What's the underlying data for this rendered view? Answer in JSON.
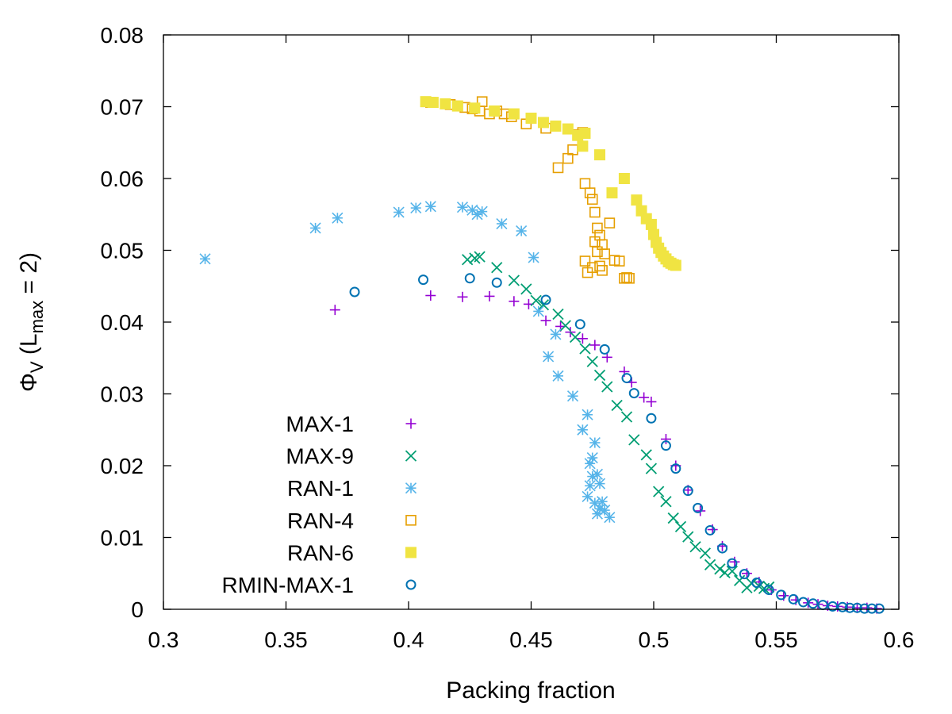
{
  "chart_data": {
    "type": "scatter",
    "title": "",
    "xlabel": "Packing fraction",
    "ylabel": {
      "base": "Φ",
      "base_sub": "V",
      "paren_open": " (L",
      "paren_sub": "max",
      "paren_close": " = 2)"
    },
    "xlim": [
      0.3,
      0.6
    ],
    "ylim": [
      0,
      0.08
    ],
    "xticks": [
      0.3,
      0.35,
      0.4,
      0.45,
      0.5,
      0.55,
      0.6
    ],
    "yticks": [
      0,
      0.01,
      0.02,
      0.03,
      0.04,
      0.05,
      0.06,
      0.07,
      0.08
    ],
    "xtick_labels": [
      "0.3",
      "0.35",
      "0.4",
      "0.45",
      "0.5",
      "0.55",
      "0.6"
    ],
    "ytick_labels": [
      "0",
      "0.01",
      "0.02",
      "0.03",
      "0.04",
      "0.05",
      "0.06",
      "0.07",
      "0.08"
    ],
    "grid": false,
    "legend_position": "bottom-left",
    "series": [
      {
        "name": "MAX-1",
        "marker": "plus",
        "color": "#9400d3",
        "x": [
          0.37,
          0.409,
          0.422,
          0.433,
          0.443,
          0.449,
          0.456,
          0.462,
          0.466,
          0.471,
          0.476,
          0.481,
          0.488,
          0.491,
          0.496,
          0.499,
          0.505,
          0.509,
          0.514,
          0.519,
          0.524,
          0.528,
          0.533,
          0.538,
          0.543,
          0.548,
          0.553,
          0.558,
          0.563,
          0.567,
          0.571,
          0.575,
          0.579,
          0.583,
          0.587,
          0.591
        ],
        "y": [
          0.0417,
          0.0437,
          0.0435,
          0.0436,
          0.0429,
          0.0425,
          0.0402,
          0.0394,
          0.0386,
          0.0377,
          0.0368,
          0.0351,
          0.0331,
          0.0316,
          0.0295,
          0.0289,
          0.0237,
          0.02,
          0.0166,
          0.0137,
          0.0111,
          0.0088,
          0.0066,
          0.005,
          0.0038,
          0.0027,
          0.0019,
          0.0013,
          0.0009,
          0.0007,
          0.0005,
          0.0004,
          0.0003,
          0.0002,
          0.0002,
          0.0001
        ]
      },
      {
        "name": "MAX-9",
        "marker": "cross",
        "color": "#009e73",
        "x": [
          0.424,
          0.427,
          0.429,
          0.436,
          0.443,
          0.448,
          0.452,
          0.455,
          0.461,
          0.464,
          0.468,
          0.472,
          0.475,
          0.478,
          0.481,
          0.485,
          0.489,
          0.492,
          0.497,
          0.499,
          0.502,
          0.505,
          0.508,
          0.511,
          0.514,
          0.517,
          0.521,
          0.523,
          0.527,
          0.529,
          0.532,
          0.535,
          0.538,
          0.54,
          0.543,
          0.545,
          0.547
        ],
        "y": [
          0.0487,
          0.0489,
          0.0491,
          0.0476,
          0.0458,
          0.0446,
          0.043,
          0.0424,
          0.0411,
          0.0395,
          0.0379,
          0.0363,
          0.0345,
          0.0326,
          0.031,
          0.0284,
          0.0268,
          0.0236,
          0.0215,
          0.0196,
          0.0164,
          0.015,
          0.0127,
          0.0115,
          0.0101,
          0.0087,
          0.0078,
          0.0062,
          0.0056,
          0.0051,
          0.0053,
          0.004,
          0.003,
          0.0036,
          0.0032,
          0.0029,
          0.0031
        ]
      },
      {
        "name": "RAN-1",
        "marker": "star",
        "color": "#56b4e9",
        "x": [
          0.317,
          0.362,
          0.371,
          0.396,
          0.403,
          0.409,
          0.422,
          0.426,
          0.428,
          0.43,
          0.438,
          0.446,
          0.451,
          0.453,
          0.457,
          0.46,
          0.461,
          0.467,
          0.471,
          0.473,
          0.474,
          0.475,
          0.476,
          0.477,
          0.478,
          0.479,
          0.48,
          0.482,
          0.473,
          0.474,
          0.475,
          0.476,
          0.477,
          0.478
        ],
        "y": [
          0.0488,
          0.0531,
          0.0545,
          0.0553,
          0.0559,
          0.0561,
          0.056,
          0.0556,
          0.055,
          0.0554,
          0.0537,
          0.0527,
          0.049,
          0.0415,
          0.0352,
          0.0383,
          0.0325,
          0.0297,
          0.025,
          0.0271,
          0.0203,
          0.0211,
          0.0232,
          0.0188,
          0.0175,
          0.015,
          0.0138,
          0.0128,
          0.0157,
          0.0172,
          0.0185,
          0.0148,
          0.0133,
          0.014
        ]
      },
      {
        "name": "RAN-4",
        "marker": "open-square",
        "color": "#e69f00",
        "x": [
          0.409,
          0.417,
          0.42,
          0.423,
          0.426,
          0.429,
          0.43,
          0.433,
          0.436,
          0.439,
          0.442,
          0.448,
          0.456,
          0.461,
          0.465,
          0.467,
          0.469,
          0.471,
          0.472,
          0.474,
          0.475,
          0.476,
          0.477,
          0.478,
          0.479,
          0.48,
          0.482,
          0.484,
          0.486,
          0.488,
          0.489,
          0.49,
          0.476,
          0.477,
          0.478,
          0.479,
          0.475,
          0.473,
          0.472
        ],
        "y": [
          0.0706,
          0.0703,
          0.0701,
          0.0699,
          0.0697,
          0.0694,
          0.0707,
          0.069,
          0.0694,
          0.069,
          0.0686,
          0.0676,
          0.067,
          0.0615,
          0.0628,
          0.064,
          0.0661,
          0.0664,
          0.0593,
          0.058,
          0.0571,
          0.0553,
          0.0531,
          0.0521,
          0.0508,
          0.0495,
          0.0538,
          0.0486,
          0.0485,
          0.0461,
          0.0462,
          0.0461,
          0.0512,
          0.0498,
          0.0478,
          0.0472,
          0.0476,
          0.0469,
          0.0485
        ]
      },
      {
        "name": "RAN-6",
        "marker": "filled-square",
        "color": "#f0e442",
        "x": [
          0.407,
          0.41,
          0.415,
          0.42,
          0.427,
          0.435,
          0.443,
          0.45,
          0.455,
          0.46,
          0.465,
          0.469,
          0.471,
          0.472,
          0.478,
          0.483,
          0.488,
          0.493,
          0.495,
          0.497,
          0.499,
          0.5,
          0.501,
          0.502,
          0.503,
          0.504,
          0.505,
          0.506,
          0.507,
          0.508,
          0.509
        ],
        "y": [
          0.0707,
          0.0706,
          0.0704,
          0.0701,
          0.0698,
          0.0694,
          0.069,
          0.0684,
          0.0678,
          0.0673,
          0.0669,
          0.066,
          0.0645,
          0.0663,
          0.0633,
          0.058,
          0.06,
          0.057,
          0.0555,
          0.0544,
          0.0536,
          0.0522,
          0.0511,
          0.0503,
          0.0497,
          0.0492,
          0.0488,
          0.0484,
          0.0482,
          0.048,
          0.0479
        ]
      },
      {
        "name": "RMIN-MAX-1",
        "marker": "open-circle",
        "color": "#0072b2",
        "x": [
          0.378,
          0.406,
          0.425,
          0.436,
          0.456,
          0.47,
          0.48,
          0.489,
          0.492,
          0.499,
          0.505,
          0.509,
          0.514,
          0.518,
          0.523,
          0.528,
          0.532,
          0.537,
          0.542,
          0.547,
          0.552,
          0.557,
          0.561,
          0.565,
          0.569,
          0.573,
          0.577,
          0.58,
          0.583,
          0.586,
          0.589,
          0.592
        ],
        "y": [
          0.0442,
          0.0459,
          0.0461,
          0.0455,
          0.0431,
          0.0397,
          0.0362,
          0.0322,
          0.0301,
          0.0266,
          0.0228,
          0.0196,
          0.0165,
          0.0141,
          0.011,
          0.0085,
          0.0064,
          0.0049,
          0.0037,
          0.0027,
          0.002,
          0.0014,
          0.001,
          0.0008,
          0.0006,
          0.0004,
          0.0003,
          0.0002,
          0.0002,
          0.0001,
          0.0001,
          0.0001
        ]
      }
    ]
  }
}
